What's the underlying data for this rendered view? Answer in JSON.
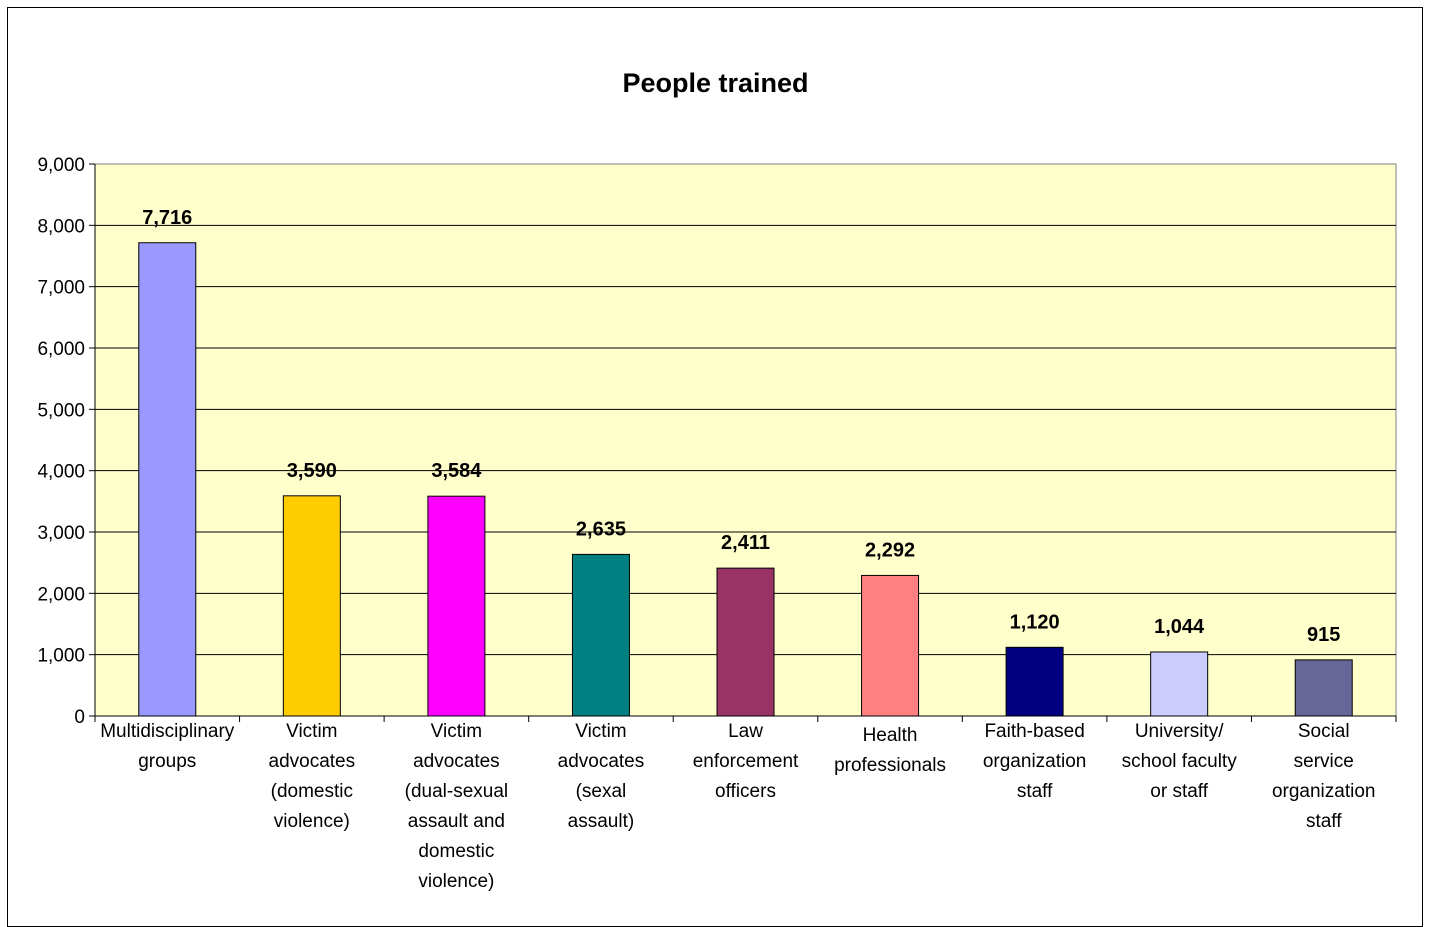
{
  "chart_data": {
    "type": "bar",
    "title": "People trained",
    "xlabel": "",
    "ylabel": "",
    "ylim": [
      0,
      9000
    ],
    "yticks": [
      0,
      1000,
      2000,
      3000,
      4000,
      5000,
      6000,
      7000,
      8000,
      9000
    ],
    "ytick_labels": [
      "0",
      "1,000",
      "2,000",
      "3,000",
      "4,000",
      "5,000",
      "6,000",
      "7,000",
      "8,000",
      "9,000"
    ],
    "grid": true,
    "legend": "none",
    "plot_background": "#ffffcc",
    "categories": [
      "Multidisciplinary groups",
      "Victim advocates (domestic violence)",
      "Victim advocates (dual-sexual assault and domestic violence)",
      "Victim advocates (sexal assault)",
      "Law enforcement officers",
      "Health professionals",
      "Faith-based organization staff",
      "University/ school faculty or staff",
      "Social service organization staff"
    ],
    "category_label_lines": [
      [
        "Multidisciplinary",
        "groups"
      ],
      [
        "Victim",
        "advocates",
        "(domestic",
        "violence)"
      ],
      [
        "Victim",
        "advocates",
        "(dual-sexual",
        "assault and",
        "domestic",
        "violence)"
      ],
      [
        "Victim",
        "advocates",
        "(sexal",
        "assault)"
      ],
      [
        "Law",
        "enforcement",
        "officers"
      ],
      [
        "Health",
        "professionals"
      ],
      [
        "Faith-based",
        "organization",
        "staff"
      ],
      [
        "University/",
        "school faculty",
        "or staff"
      ],
      [
        "Social",
        "service",
        "organization",
        "staff"
      ]
    ],
    "values": [
      7716,
      3590,
      3584,
      2635,
      2411,
      2292,
      1120,
      1044,
      915
    ],
    "data_labels": [
      "7,716",
      "3,590",
      "3,584",
      "2,635",
      "2,411",
      "2,292",
      "1,120",
      "1,044",
      "915"
    ],
    "colors": [
      "#9999ff",
      "#ffcc00",
      "#ff00ff",
      "#008080",
      "#993366",
      "#ff8080",
      "#000080",
      "#ccccff",
      "#666699"
    ]
  }
}
